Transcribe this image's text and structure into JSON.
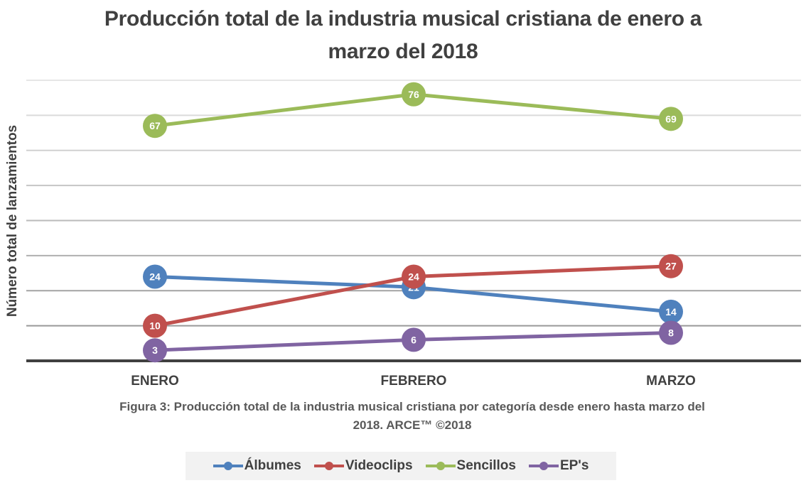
{
  "chart_data": {
    "type": "line",
    "title": "Producción total de la industria musical cristiana de enero a marzo del 2018",
    "title_lines": [
      "Producción total de la industria musical cristiana de enero a",
      "marzo del 2018"
    ],
    "xlabel": "",
    "ylabel": "Número total de lanzamientos",
    "categories": [
      "ENERO",
      "FEBRERO",
      "MARZO"
    ],
    "ylim": [
      0,
      80
    ],
    "ytick_step": 10,
    "ytick_labels_visible": false,
    "grid": true,
    "legend_position": "bottom",
    "series": [
      {
        "name": "Álbumes",
        "color": "#4f81bd",
        "values": [
          24,
          21,
          14
        ]
      },
      {
        "name": "Videoclips",
        "color": "#c0504d",
        "values": [
          10,
          24,
          27
        ]
      },
      {
        "name": "Sencillos",
        "color": "#9bbb59",
        "values": [
          67,
          76,
          69
        ]
      },
      {
        "name": "EP's",
        "color": "#8064a2",
        "values": [
          3,
          6,
          8
        ]
      }
    ],
    "caption_lines": [
      "Figura 3: Producción total de la industria musical cristiana por categoría desde enero hasta marzo del",
      "2018.  ARCE™ ©2018"
    ]
  }
}
